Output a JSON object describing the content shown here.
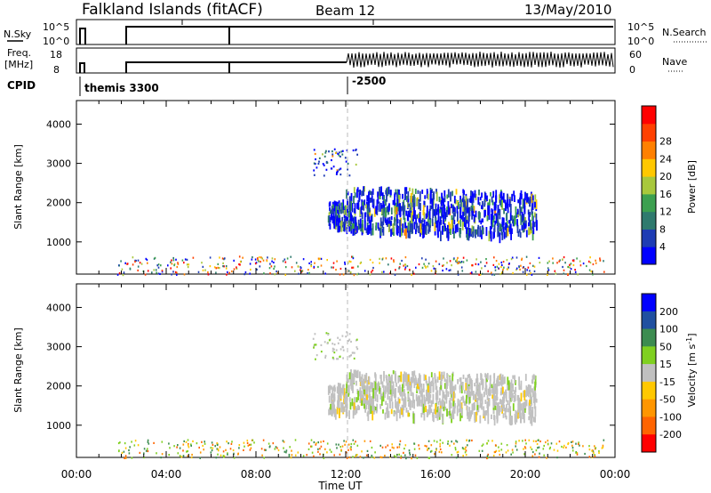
{
  "header": {
    "station": "Falkland Islands (fitACF)",
    "beam": "Beam 12",
    "date": "13/May/2010"
  },
  "panel_labels": {
    "nsky": "N.Sky",
    "nsky_top": "10^5",
    "nsky_bottom": "10^0",
    "nsearch": "N.Search",
    "nsearch_top": "10^5",
    "nsearch_bottom": "10^0",
    "freq_line1": "Freq.",
    "freq_line2": "[MHz]",
    "freq_top": "18",
    "freq_bottom": "8",
    "nave": "Nave",
    "nave_top": "60",
    "nave_bottom": "0",
    "cpid": "CPID",
    "cpid_mode1": "themis 3300",
    "cpid_mode2": "-2500"
  },
  "colors": {
    "power": [
      "#0000ff",
      "#1e3cb4",
      "#2f7a6e",
      "#3ca050",
      "#a8c83c",
      "#ffc800",
      "#ff8000",
      "#ff4000",
      "#ff0000"
    ],
    "velocity_pos": [
      "#0000ff",
      "#2050a0",
      "#3c8c50",
      "#7fd020"
    ],
    "velocity_mid": "#c0c0c0",
    "velocity_neg": [
      "#ffc800",
      "#ff9600",
      "#ff6400",
      "#ff0000"
    ]
  },
  "chart_data": [
    {
      "type": "heatmap",
      "title": "Power",
      "ylabel": "Slant Range [km]",
      "xlabel": "Time UT",
      "xlim": [
        0,
        24
      ],
      "ylim": [
        180,
        4600
      ],
      "xticks": [
        "00:00",
        "04:00",
        "08:00",
        "12:00",
        "16:00",
        "20:00",
        "00:00"
      ],
      "yticks": [
        1000,
        2000,
        3000,
        4000
      ],
      "colorbar": {
        "label": "Power [dB]",
        "ticks": [
          4,
          8,
          12,
          16,
          20,
          24,
          28
        ]
      },
      "regions": [
        {
          "name": "ground scatter band",
          "t": [
            1.8,
            23.5
          ],
          "r": [
            180,
            650
          ],
          "value": 14
        },
        {
          "name": "ionospheric scatter",
          "t": [
            11.2,
            20.5
          ],
          "r": [
            1000,
            2600
          ],
          "value": 6
        },
        {
          "name": "upper arm",
          "t": [
            10.5,
            12.5
          ],
          "r": [
            2700,
            3400
          ],
          "value": 5
        }
      ]
    },
    {
      "type": "heatmap",
      "title": "Velocity",
      "ylabel": "Slant Range [km]",
      "xlabel": "Time UT",
      "xlim": [
        0,
        24
      ],
      "ylim": [
        180,
        4600
      ],
      "xticks": [
        "00:00",
        "04:00",
        "08:00",
        "12:00",
        "16:00",
        "20:00",
        "00:00"
      ],
      "yticks": [
        1000,
        2000,
        3000,
        4000
      ],
      "colorbar": {
        "label": "Velocity [m s^-1]",
        "ticks": [
          200,
          100,
          50,
          15,
          -15,
          -50,
          -100,
          -200
        ]
      },
      "regions": [
        {
          "name": "ground scatter band",
          "t": [
            1.8,
            23.5
          ],
          "r": [
            180,
            650
          ],
          "value": -30
        },
        {
          "name": "ionospheric scatter",
          "t": [
            11.2,
            20.5
          ],
          "r": [
            1000,
            2600
          ],
          "value": 0
        },
        {
          "name": "upper arm",
          "t": [
            10.5,
            12.5
          ],
          "r": [
            2700,
            3400
          ],
          "value": 0
        }
      ]
    }
  ],
  "axis": {
    "xlabel": "Time UT",
    "ylabel": "Slant Range [km]",
    "power_label": "Power [dB]",
    "velocity_label_main": "Velocity [m s",
    "velocity_label_sup": "-1",
    "velocity_label_end": "]"
  }
}
